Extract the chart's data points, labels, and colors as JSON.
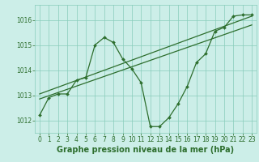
{
  "title": "Graphe pression niveau de la mer (hPa)",
  "bg_color": "#cceee8",
  "grid_color": "#88ccbb",
  "line_color": "#2d6e2d",
  "ylim": [
    1011.5,
    1016.6
  ],
  "xlim": [
    -0.5,
    23.5
  ],
  "yticks": [
    1012,
    1013,
    1014,
    1015,
    1016
  ],
  "xticks": [
    0,
    1,
    2,
    3,
    4,
    5,
    6,
    7,
    8,
    9,
    10,
    11,
    12,
    13,
    14,
    15,
    16,
    17,
    18,
    19,
    20,
    21,
    22,
    23
  ],
  "pressure_data": [
    1012.2,
    1012.9,
    1013.05,
    1013.05,
    1013.6,
    1013.7,
    1015.0,
    1015.3,
    1015.1,
    1014.45,
    1014.05,
    1013.5,
    1011.75,
    1011.75,
    1012.1,
    1012.65,
    1013.35,
    1014.3,
    1014.65,
    1015.55,
    1015.7,
    1016.15,
    1016.2,
    1016.2
  ],
  "trend1_x": [
    0,
    23
  ],
  "trend1_y": [
    1013.05,
    1016.15
  ],
  "trend2_x": [
    0,
    23
  ],
  "trend2_y": [
    1012.85,
    1015.8
  ],
  "fontsize_label": 7,
  "tick_fontsize": 5.5,
  "label_fontsize": 7
}
